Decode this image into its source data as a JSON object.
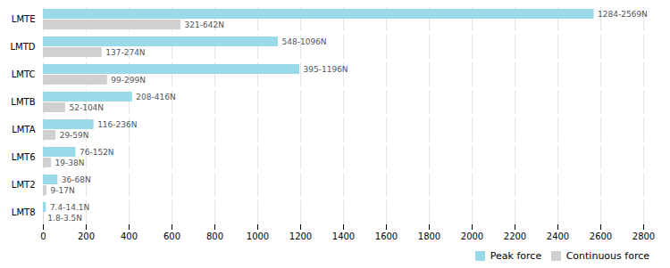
{
  "chart_data": {
    "type": "bar",
    "orientation": "horizontal",
    "categories": [
      "LMTE",
      "LMTD",
      "LMTC",
      "LMTB",
      "LMTA",
      "LMT6",
      "LMT2",
      "LMT8"
    ],
    "series": [
      {
        "name": "Peak force",
        "color": "#99D9EA",
        "values": [
          2569,
          1096,
          1196,
          416,
          236,
          152,
          68,
          14.1
        ],
        "value_labels": [
          "1284-2569N",
          "548-1096N",
          "395-1196N",
          "208-416N",
          "116-236N",
          "76-152N",
          "36-68N",
          "7.4-14.1N"
        ]
      },
      {
        "name": "Continuous force",
        "color": "#D0D0D0",
        "values": [
          642,
          274,
          299,
          104,
          59,
          38,
          17,
          3.5
        ],
        "value_labels": [
          "321-642N",
          "137-274N",
          "99-299N",
          "52-104N",
          "29-59N",
          "19-38N",
          "9-17N",
          "1.8-3.5N"
        ]
      }
    ],
    "xlim": [
      0,
      2800
    ],
    "xticks": [
      0,
      200,
      400,
      600,
      800,
      1000,
      1200,
      1400,
      1600,
      1800,
      2000,
      2200,
      2400,
      2600,
      2800
    ],
    "grid": true,
    "legend": "lower right",
    "data_labels": true
  }
}
